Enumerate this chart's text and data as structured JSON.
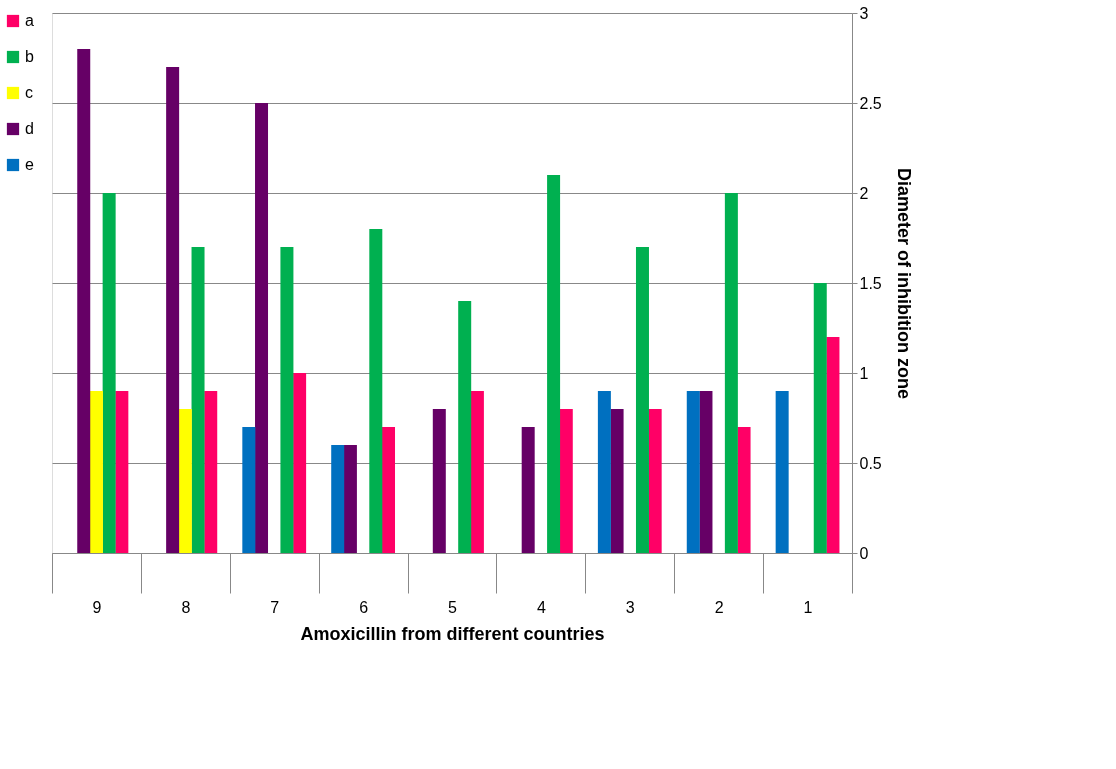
{
  "chart_data": {
    "type": "bar",
    "xlabel": "Amoxicillin from different countries",
    "ylabel": "Diameter of inhibition zone",
    "categories": [
      "9",
      "8",
      "7",
      "6",
      "5",
      "4",
      "3",
      "2",
      "1"
    ],
    "series": [
      {
        "name": "a",
        "color": "#ff0066",
        "values": [
          0.9,
          0.9,
          1.0,
          0.7,
          0.9,
          0.8,
          0.8,
          0.7,
          1.2
        ]
      },
      {
        "name": "b",
        "color": "#00b050",
        "values": [
          2.0,
          1.7,
          1.7,
          1.8,
          1.4,
          2.1,
          1.7,
          2.0,
          1.5
        ]
      },
      {
        "name": "c",
        "color": "#ffff00",
        "values": [
          0.9,
          0.8,
          null,
          null,
          null,
          null,
          null,
          null,
          null
        ]
      },
      {
        "name": "d",
        "color": "#660066",
        "values": [
          2.8,
          2.7,
          2.5,
          0.6,
          0.8,
          0.7,
          0.8,
          0.9,
          null
        ]
      },
      {
        "name": "e",
        "color": "#0070c0",
        "values": [
          null,
          null,
          0.7,
          0.6,
          null,
          null,
          0.9,
          0.9,
          0.9
        ]
      }
    ],
    "ylim": [
      0,
      3
    ],
    "yticks": [
      0,
      0.5,
      1,
      1.5,
      2,
      2.5,
      3
    ],
    "grid": "y",
    "legend": "left"
  }
}
